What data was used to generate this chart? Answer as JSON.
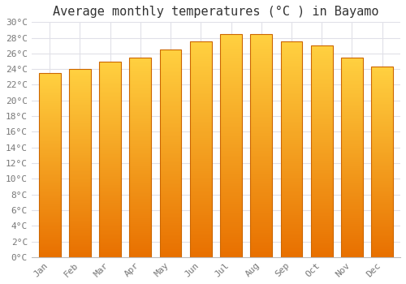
{
  "title": "Average monthly temperatures (°C ) in Bayamo",
  "months": [
    "Jan",
    "Feb",
    "Mar",
    "Apr",
    "May",
    "Jun",
    "Jul",
    "Aug",
    "Sep",
    "Oct",
    "Nov",
    "Dec"
  ],
  "values": [
    23.5,
    24.0,
    25.0,
    25.5,
    26.5,
    27.5,
    28.5,
    28.5,
    27.5,
    27.0,
    25.5,
    24.3
  ],
  "bar_color_bottom": "#E87000",
  "bar_color_top": "#FFD040",
  "bar_edge_color": "#CC6600",
  "background_color": "#FFFFFF",
  "grid_color": "#E0E0E8",
  "ylim": [
    0,
    30
  ],
  "ytick_step": 2,
  "title_fontsize": 11,
  "tick_fontsize": 8,
  "font_family": "monospace",
  "bar_width": 0.72
}
